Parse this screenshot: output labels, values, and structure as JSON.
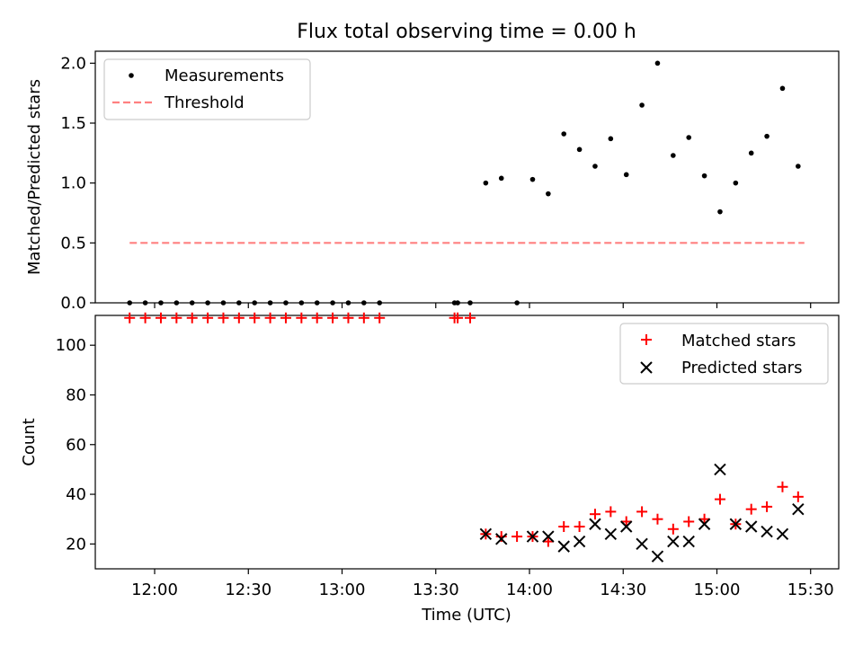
{
  "figure": {
    "title": "Flux total observing time = 0.00 h",
    "xlabel": "Time (UTC)",
    "x_ticks": [
      "12:00",
      "12:30",
      "13:00",
      "13:30",
      "14:00",
      "14:30",
      "15:00",
      "15:30"
    ]
  },
  "chart_data": [
    {
      "type": "scatter",
      "ylabel": "Matched/Predicted stars",
      "ylim": [
        0,
        2.1
      ],
      "yticks": [
        "0.0",
        "0.5",
        "1.0",
        "1.5",
        "2.0"
      ],
      "xlim": [
        "11:41",
        "15:39"
      ],
      "legend_position": "top-left",
      "series": [
        {
          "name": "Measurements",
          "kind": "scatter",
          "color": "#000000",
          "x": [
            "11:52",
            "11:57",
            "12:02",
            "12:07",
            "12:12",
            "12:17",
            "12:22",
            "12:27",
            "12:32",
            "12:37",
            "12:42",
            "12:47",
            "12:52",
            "12:57",
            "13:02",
            "13:07",
            "13:12",
            "13:36",
            "13:37",
            "13:41",
            "13:46",
            "13:51",
            "13:56",
            "14:01",
            "14:06",
            "14:11",
            "14:16",
            "14:21",
            "14:26",
            "14:31",
            "14:36",
            "14:41",
            "14:46",
            "14:51",
            "14:56",
            "15:01",
            "15:06",
            "15:11",
            "15:16",
            "15:21",
            "15:26"
          ],
          "y": [
            0,
            0,
            0,
            0,
            0,
            0,
            0,
            0,
            0,
            0,
            0,
            0,
            0,
            0,
            0,
            0,
            0,
            0,
            0,
            0,
            1.0,
            1.04,
            0,
            1.03,
            0.91,
            1.41,
            1.28,
            1.14,
            1.37,
            1.07,
            1.65,
            2.0,
            1.23,
            1.38,
            1.06,
            0.76,
            1.0,
            1.25,
            1.39,
            1.79,
            1.14
          ]
        },
        {
          "name": "Threshold",
          "kind": "line",
          "style": "dashed",
          "color": "#ff8080",
          "x": [
            "11:52",
            "15:28"
          ],
          "y": [
            0.5,
            0.5
          ]
        }
      ]
    },
    {
      "type": "scatter",
      "ylabel": "Count",
      "ylim": [
        10,
        112
      ],
      "yticks": [
        "20",
        "40",
        "60",
        "80",
        "100"
      ],
      "xlim": [
        "11:41",
        "15:39"
      ],
      "legend_position": "top-right",
      "series": [
        {
          "name": "Matched stars",
          "marker": "+",
          "color": "#ff0000",
          "x": [
            "11:52",
            "11:57",
            "12:02",
            "12:07",
            "12:12",
            "12:17",
            "12:22",
            "12:27",
            "12:32",
            "12:37",
            "12:42",
            "12:47",
            "12:52",
            "12:57",
            "13:02",
            "13:07",
            "13:12",
            "13:36",
            "13:37",
            "13:41",
            "13:46",
            "13:51",
            "13:56",
            "14:01",
            "14:06",
            "14:11",
            "14:16",
            "14:21",
            "14:26",
            "14:31",
            "14:36",
            "14:41",
            "14:46",
            "14:51",
            "14:56",
            "15:01",
            "15:06",
            "15:11",
            "15:16",
            "15:21",
            "15:26"
          ],
          "y": [
            111,
            111,
            111,
            111,
            111,
            111,
            111,
            111,
            111,
            111,
            111,
            111,
            111,
            111,
            111,
            111,
            111,
            111,
            111,
            111,
            24,
            23,
            23,
            23,
            21,
            27,
            27,
            32,
            33,
            29,
            33,
            30,
            26,
            29,
            30,
            38,
            28,
            34,
            35,
            43,
            39
          ]
        },
        {
          "name": "Predicted stars",
          "marker": "x",
          "color": "#000000",
          "x": [
            "13:46",
            "13:51",
            "14:01",
            "14:06",
            "14:11",
            "14:16",
            "14:21",
            "14:26",
            "14:31",
            "14:36",
            "14:41",
            "14:46",
            "14:51",
            "14:56",
            "15:01",
            "15:06",
            "15:11",
            "15:16",
            "15:21",
            "15:26"
          ],
          "y": [
            24,
            22,
            23,
            23,
            19,
            21,
            28,
            24,
            27,
            20,
            15,
            21,
            21,
            28,
            50,
            28,
            27,
            25,
            24,
            34
          ]
        }
      ]
    }
  ]
}
